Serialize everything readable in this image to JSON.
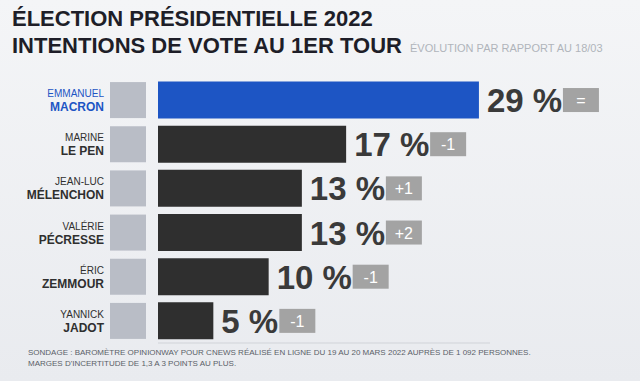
{
  "chart_data": {
    "type": "bar",
    "orientation": "horizontal",
    "title": "ÉLECTION PRÉSIDENTIELLE 2022",
    "subtitle": "INTENTIONS DE VOTE AU 1ER TOUR",
    "annotation": "ÉVOLUTION PAR RAPPORT AU 18/03",
    "categories": [
      "EMMANUEL MACRON",
      "MARINE LE PEN",
      "JEAN-LUC MÉLENCHON",
      "VALÉRIE PÉCRESSE",
      "ÉRIC ZEMMOUR",
      "YANNICK JADOT"
    ],
    "values": [
      29,
      17,
      13,
      13,
      10,
      5
    ],
    "value_labels": [
      "29 %",
      "17 %",
      "13 %",
      "13 %",
      "10 %",
      "5 %"
    ],
    "evolution": [
      "=",
      "-1",
      "+1",
      "+2",
      "-1",
      "-1"
    ],
    "colors": [
      "#1d55c4",
      "#2f2f2f",
      "#2f2f2f",
      "#2f2f2f",
      "#2f2f2f",
      "#2f2f2f"
    ],
    "xlim": [
      0,
      30
    ],
    "tick_labels": false,
    "grid": false,
    "data_labels": true,
    "source": [
      "SONDAGE : BAROMÈTRE OPINIONWAY POUR CNEWS RÉALISÉ EN LIGNE DU 19 AU 20 MARS 2022 AUPRÈS DE 1 092 PERSONNES.",
      "MARGES D'INCERTITUDE DE 1,3 A 3 POINTS AU PLUS."
    ]
  }
}
